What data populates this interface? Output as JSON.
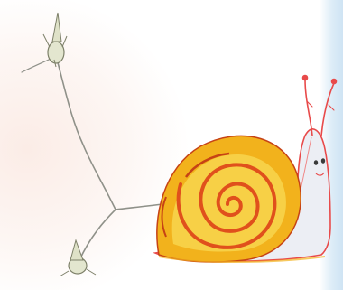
{
  "scene": {
    "subjects": [
      "snail-drawing",
      "dandelion-seed-top",
      "dandelion-seed-bottom"
    ],
    "colors": {
      "shell_outer": "#f2b21c",
      "shell_mid": "#f7d046",
      "shell_spiral": "#e0501c",
      "shell_dark": "#c64215",
      "body": "#eceef4",
      "body_outline": "#e84a4a",
      "stem": "#8f9189",
      "seed": "#d8dcc4",
      "background_left": "#fbece6",
      "background_right": "#cfe4f4"
    }
  }
}
